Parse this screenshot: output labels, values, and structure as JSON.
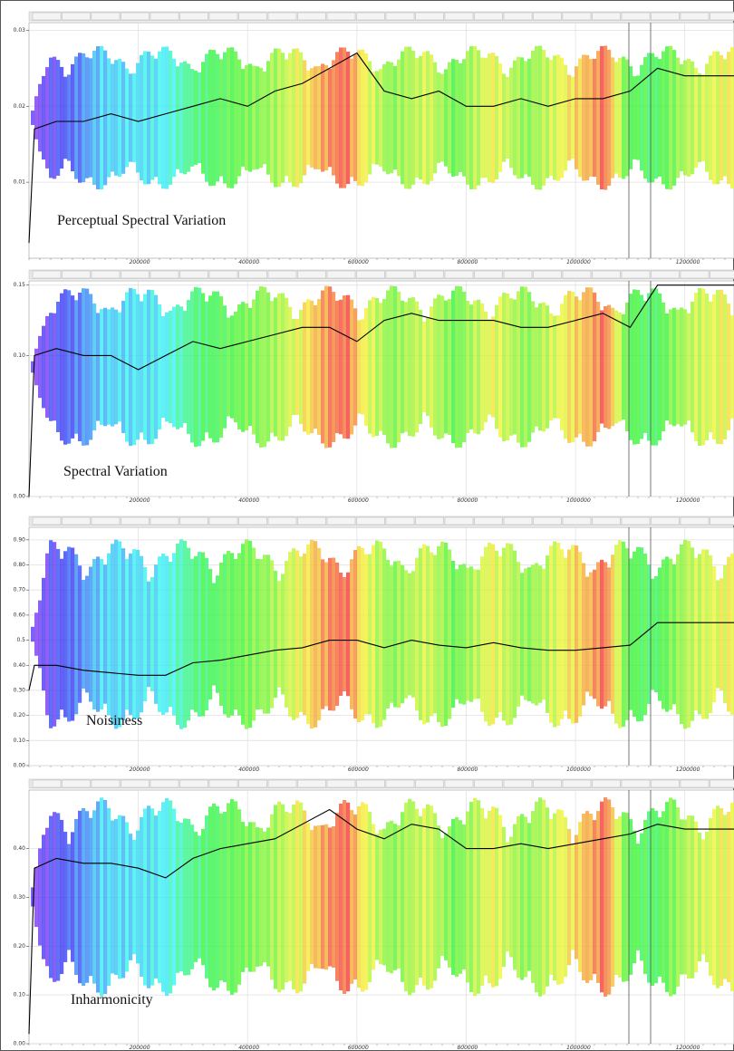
{
  "chart_data": [
    {
      "type": "line",
      "title": "Perceptual Spectral Variation",
      "color": "#000000",
      "x": [
        0,
        10000,
        50000,
        100000,
        150000,
        200000,
        250000,
        300000,
        350000,
        400000,
        450000,
        500000,
        550000,
        600000,
        650000,
        700000,
        750000,
        800000,
        850000,
        900000,
        950000,
        1000000,
        1050000,
        1100000,
        1150000,
        1200000,
        1250000,
        1290000
      ],
      "values": [
        0.002,
        0.017,
        0.018,
        0.018,
        0.019,
        0.018,
        0.019,
        0.02,
        0.021,
        0.02,
        0.022,
        0.023,
        0.025,
        0.027,
        0.022,
        0.021,
        0.022,
        0.02,
        0.02,
        0.021,
        0.02,
        0.021,
        0.021,
        0.022,
        0.025,
        0.024,
        0.024,
        0.024
      ],
      "xlim": [
        0,
        1290000
      ],
      "xticks": [
        200000,
        400000,
        600000,
        800000,
        1000000,
        1200000
      ],
      "ylim": [
        0,
        0.031
      ],
      "yticks": [
        0.01,
        0.02,
        0.03
      ],
      "grid": true
    },
    {
      "type": "line",
      "title": "Spectral Variation",
      "color": "#000000",
      "x": [
        0,
        10000,
        50000,
        100000,
        150000,
        200000,
        250000,
        300000,
        350000,
        400000,
        450000,
        500000,
        550000,
        600000,
        650000,
        700000,
        750000,
        800000,
        850000,
        900000,
        950000,
        1000000,
        1050000,
        1100000,
        1150000,
        1200000,
        1250000,
        1290000
      ],
      "values": [
        0.0,
        0.1,
        0.105,
        0.1,
        0.1,
        0.09,
        0.1,
        0.11,
        0.105,
        0.11,
        0.115,
        0.12,
        0.12,
        0.11,
        0.125,
        0.13,
        0.125,
        0.125,
        0.125,
        0.12,
        0.12,
        0.125,
        0.13,
        0.12,
        0.15,
        0.15,
        0.15,
        0.15
      ],
      "xlim": [
        0,
        1290000
      ],
      "xticks": [
        200000,
        400000,
        600000,
        800000,
        1000000,
        1200000
      ],
      "ylim": [
        0,
        0.153
      ],
      "yticks": [
        {
          "value": 0,
          "label": "0.00"
        },
        {
          "value": 0.1,
          "label": "0.10"
        },
        0.15
      ],
      "grid": true
    },
    {
      "type": "line",
      "title": "Noisiness",
      "color": "#000000",
      "x": [
        0,
        10000,
        50000,
        100000,
        150000,
        200000,
        250000,
        300000,
        350000,
        400000,
        450000,
        500000,
        550000,
        600000,
        650000,
        700000,
        750000,
        800000,
        850000,
        900000,
        950000,
        1000000,
        1050000,
        1100000,
        1150000,
        1200000,
        1250000,
        1290000
      ],
      "values": [
        0.3,
        0.4,
        0.4,
        0.38,
        0.37,
        0.36,
        0.36,
        0.41,
        0.42,
        0.44,
        0.46,
        0.47,
        0.5,
        0.5,
        0.47,
        0.5,
        0.48,
        0.47,
        0.49,
        0.47,
        0.46,
        0.46,
        0.47,
        0.48,
        0.57,
        0.57,
        0.57,
        0.57
      ],
      "xlim": [
        0,
        1290000
      ],
      "xticks": [
        200000,
        400000,
        600000,
        800000,
        1000000,
        1200000
      ],
      "ylim": [
        0,
        0.95
      ],
      "yticks": [
        {
          "value": 0,
          "label": "0.00"
        },
        {
          "value": 0.1,
          "label": "0.10"
        },
        {
          "value": 0.2,
          "label": "0.20"
        },
        {
          "value": 0.3,
          "label": "0.30"
        },
        {
          "value": 0.4,
          "label": "0.40"
        },
        0.5,
        {
          "value": 0.6,
          "label": "0.60"
        },
        {
          "value": 0.7,
          "label": "0.70"
        },
        {
          "value": 0.8,
          "label": "0.80"
        },
        {
          "value": 0.9,
          "label": "0.90"
        }
      ],
      "grid": true
    },
    {
      "type": "line",
      "title": "Inharmonicity",
      "color": "#000000",
      "x": [
        0,
        10000,
        50000,
        100000,
        150000,
        200000,
        250000,
        300000,
        350000,
        400000,
        450000,
        500000,
        550000,
        600000,
        650000,
        700000,
        750000,
        800000,
        850000,
        900000,
        950000,
        1000000,
        1050000,
        1100000,
        1150000,
        1200000,
        1250000,
        1290000
      ],
      "values": [
        0.02,
        0.36,
        0.38,
        0.37,
        0.37,
        0.36,
        0.34,
        0.38,
        0.4,
        0.41,
        0.42,
        0.45,
        0.48,
        0.44,
        0.42,
        0.45,
        0.44,
        0.4,
        0.4,
        0.41,
        0.4,
        0.41,
        0.42,
        0.43,
        0.45,
        0.44,
        0.44,
        0.44
      ],
      "xlim": [
        0,
        1290000
      ],
      "xticks": [
        200000,
        400000,
        600000,
        800000,
        1000000,
        1200000
      ],
      "ylim": [
        0,
        0.52
      ],
      "yticks": [
        {
          "value": 0,
          "label": "0.00"
        },
        {
          "value": 0.1,
          "label": "0.10"
        },
        {
          "value": 0.2,
          "label": "0.20"
        },
        {
          "value": 0.3,
          "label": "0.30"
        },
        {
          "value": 0.4,
          "label": "0.40"
        }
      ],
      "grid": true
    }
  ]
}
